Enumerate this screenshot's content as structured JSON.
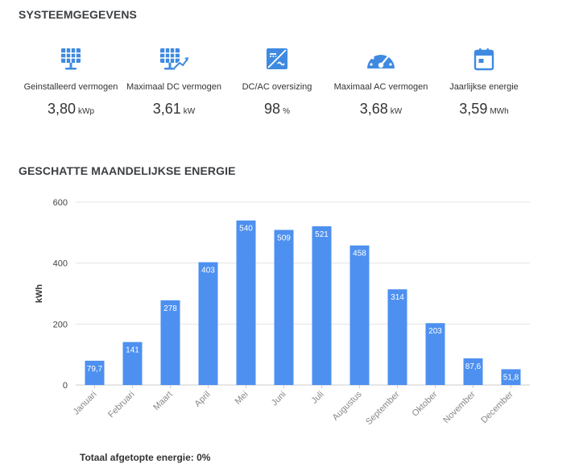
{
  "system": {
    "title": "SYSTEEMGEGEVENS",
    "metrics": [
      {
        "icon": "solar-panel-icon",
        "label": "Geinstalleerd vermogen",
        "value": "3,80",
        "unit": "kWp"
      },
      {
        "icon": "solar-panel-growth-icon",
        "label": "Maximaal DC vermogen",
        "value": "3,61",
        "unit": "kW"
      },
      {
        "icon": "inverter-icon",
        "label": "DC/AC oversizing",
        "value": "98",
        "unit": "%"
      },
      {
        "icon": "gauge-icon",
        "label": "Maximaal AC vermogen",
        "value": "3,68",
        "unit": "kW"
      },
      {
        "icon": "calendar-icon",
        "label": "Jaarlijkse energie",
        "value": "3,59",
        "unit": "MWh"
      }
    ]
  },
  "colors": {
    "accent": "#4d90f0",
    "grid": "#e5e5e5",
    "axis": "#cccccc"
  },
  "chart_data": {
    "type": "bar",
    "title": "GESCHATTE MAANDELIJKSE ENERGIE",
    "xlabel": "",
    "ylabel": "kWh",
    "ylim": [
      0,
      600
    ],
    "yticks": [
      0,
      200,
      400,
      600
    ],
    "grid": true,
    "categories": [
      "Januari",
      "Februari",
      "Maart",
      "April",
      "Mei",
      "Juni",
      "Juli",
      "Augustus",
      "September",
      "Oktober",
      "November",
      "December"
    ],
    "values": [
      79.7,
      141,
      278,
      403,
      540,
      509,
      521,
      458,
      314,
      203,
      87.6,
      51.8
    ],
    "value_labels": [
      "79,7",
      "141",
      "278",
      "403",
      "540",
      "509",
      "521",
      "458",
      "314",
      "203",
      "87,6",
      "51,8"
    ]
  },
  "footer": {
    "text": "Totaal afgetopte energie: 0%"
  }
}
